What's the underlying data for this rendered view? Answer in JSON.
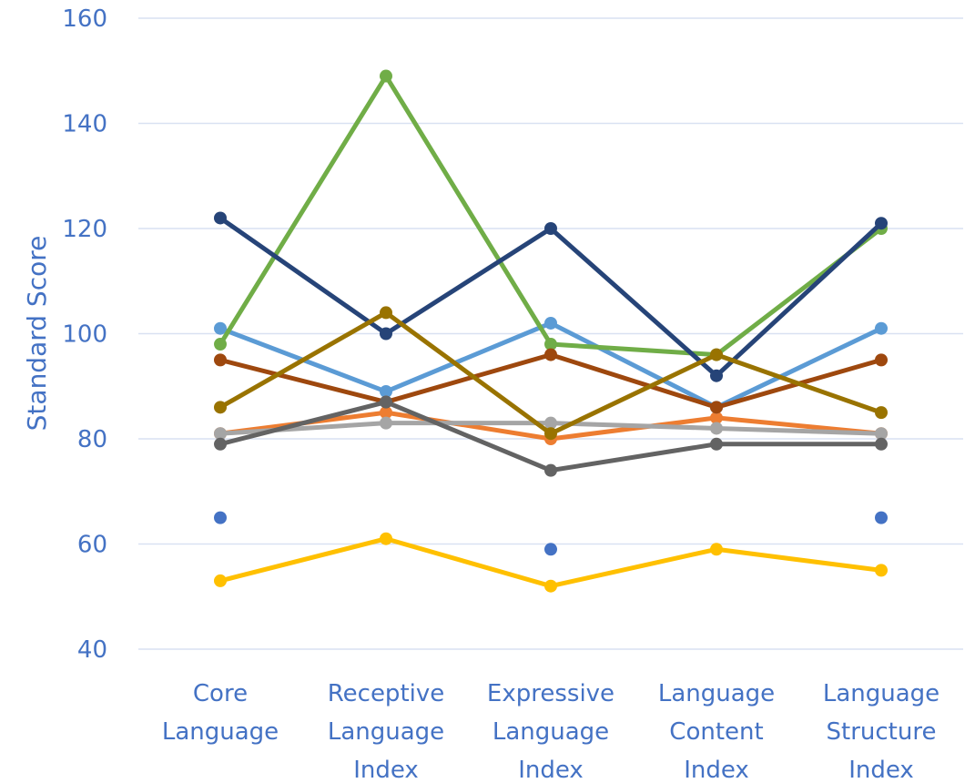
{
  "chart_data": {
    "type": "line",
    "title": "",
    "ylabel": "Standard Score",
    "xlabel": "",
    "ylim": [
      40,
      160
    ],
    "yticks": [
      40,
      60,
      80,
      100,
      120,
      140,
      160
    ],
    "grid": true,
    "legend": "none",
    "categories": [
      [
        "Core",
        "Language"
      ],
      [
        "Receptive",
        "Language",
        "Index"
      ],
      [
        "Expressive",
        "Language",
        "Index"
      ],
      [
        "Language",
        "Content",
        "Index"
      ],
      [
        "Language",
        "Structure",
        "Index"
      ]
    ],
    "series": [
      {
        "color": "#4472C4",
        "line": false,
        "values": [
          65,
          null,
          59,
          null,
          65
        ]
      },
      {
        "color": "#ED7D31",
        "line": true,
        "values": [
          81,
          85,
          80,
          84,
          81
        ]
      },
      {
        "color": "#A5A5A5",
        "line": true,
        "values": [
          81,
          83,
          83,
          82,
          81
        ]
      },
      {
        "color": "#FFC000",
        "line": true,
        "values": [
          53,
          61,
          52,
          59,
          55
        ]
      },
      {
        "color": "#5B9BD5",
        "line": true,
        "values": [
          101,
          89,
          102,
          86,
          101
        ]
      },
      {
        "color": "#70AD47",
        "line": true,
        "values": [
          98,
          149,
          98,
          96,
          120
        ]
      },
      {
        "color": "#264478",
        "line": true,
        "values": [
          122,
          100,
          120,
          92,
          121
        ]
      },
      {
        "color": "#9E480E",
        "line": true,
        "values": [
          95,
          87,
          96,
          86,
          95
        ]
      },
      {
        "color": "#636363",
        "line": true,
        "values": [
          79,
          87,
          74,
          79,
          79
        ]
      },
      {
        "color": "#997300",
        "line": true,
        "values": [
          86,
          104,
          81,
          96,
          85
        ]
      }
    ],
    "colors": {
      "text": "#4472C4",
      "grid": "#D9E1F2"
    }
  }
}
